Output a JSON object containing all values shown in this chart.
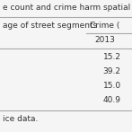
{
  "title_text": "e count and crime harm spatial clus",
  "col_header_left": "age of street segments",
  "col_header_right": "Crime (",
  "subheader_right": "2013",
  "values": [
    "15.2",
    "39.2",
    "15.0",
    "40.9"
  ],
  "footer": "ice data.",
  "bg_color": "#f5f5f5",
  "line_color": "#aaaaaa",
  "text_color": "#333333",
  "font_size": 6.5
}
